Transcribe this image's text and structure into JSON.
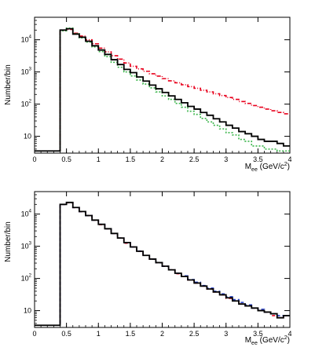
{
  "chart_data": [
    {
      "type": "histogram",
      "panel": "top",
      "ylabel": "Number/bin",
      "xlabel_main": "M",
      "xlabel_sub": "ee",
      "xlabel_unit": " (GeV/c",
      "xlabel_sup": "2",
      "xlabel_close": ")",
      "xlim": [
        0,
        4
      ],
      "ylim": [
        3,
        50000
      ],
      "yscale": "log",
      "x_ticks": [
        "0",
        "0.5",
        "1",
        "1.5",
        "2",
        "2.5",
        "3",
        "3.5",
        "4"
      ],
      "y_ticks": [
        {
          "base": "10",
          "exp": ""
        },
        {
          "base": "10",
          "exp": "2"
        },
        {
          "base": "10",
          "exp": "3"
        },
        {
          "base": "10",
          "exp": "4"
        }
      ],
      "bin_start": 0.4,
      "bin_width": 0.1,
      "underflow_value": 3.5,
      "series": [
        {
          "color": "#000000",
          "style": "solid",
          "values": [
            20000,
            22000,
            15000,
            12000,
            9000,
            6500,
            4800,
            3500,
            2400,
            1700,
            1200,
            950,
            700,
            520,
            390,
            300,
            230,
            180,
            140,
            110,
            85,
            70,
            55,
            45,
            35,
            28,
            22,
            18,
            14,
            12,
            10,
            8,
            7,
            7,
            6,
            5
          ]
        },
        {
          "color": "#e8001c",
          "style": "dashdot",
          "values": [
            20000,
            21000,
            16000,
            13000,
            10000,
            7500,
            5500,
            4200,
            3200,
            2500,
            1900,
            1500,
            1250,
            1050,
            880,
            740,
            620,
            530,
            460,
            400,
            350,
            310,
            270,
            240,
            210,
            185,
            160,
            140,
            120,
            105,
            90,
            80,
            70,
            62,
            55,
            50
          ]
        },
        {
          "color": "#3ab54a",
          "style": "dotted",
          "values": [
            19000,
            23000,
            15500,
            11500,
            8500,
            6000,
            4300,
            3000,
            2000,
            1400,
            1000,
            750,
            560,
            420,
            320,
            240,
            180,
            140,
            105,
            80,
            60,
            48,
            36,
            28,
            22,
            17,
            13,
            11,
            8,
            7,
            5,
            5,
            4,
            4,
            3.5,
            3.5
          ]
        }
      ]
    },
    {
      "type": "histogram",
      "panel": "bottom",
      "ylabel": "Number/bin",
      "xlabel_main": "M",
      "xlabel_sub": "ee",
      "xlabel_unit": " (GeV/c",
      "xlabel_sup": "2",
      "xlabel_close": ")",
      "xlim": [
        0,
        4
      ],
      "ylim": [
        3,
        50000
      ],
      "yscale": "log",
      "x_ticks": [
        "0",
        "0.5",
        "1",
        "1.5",
        "2",
        "2.5",
        "3",
        "3.5",
        "4"
      ],
      "y_ticks": [
        {
          "base": "10",
          "exp": ""
        },
        {
          "base": "10",
          "exp": "2"
        },
        {
          "base": "10",
          "exp": "3"
        },
        {
          "base": "10",
          "exp": "4"
        }
      ],
      "bin_start": 0.4,
      "bin_width": 0.1,
      "underflow_value": 3.5,
      "series": [
        {
          "color": "#000000",
          "style": "solid",
          "values": [
            20000,
            23000,
            16000,
            12000,
            9000,
            6500,
            4800,
            3500,
            2500,
            1800,
            1300,
            950,
            700,
            520,
            400,
            310,
            240,
            185,
            145,
            115,
            90,
            72,
            58,
            47,
            38,
            31,
            25,
            20,
            16,
            14,
            12,
            10,
            9,
            8,
            6,
            7
          ]
        },
        {
          "color": "#e8001c",
          "style": "dashed",
          "values": [
            20000,
            22500,
            16000,
            12000,
            9000,
            6500,
            4700,
            3500,
            2500,
            1800,
            1250,
            950,
            700,
            520,
            400,
            310,
            240,
            185,
            140,
            115,
            90,
            72,
            58,
            47,
            38,
            31,
            24,
            20,
            16,
            14,
            12,
            10,
            9,
            7,
            6,
            7
          ]
        },
        {
          "color": "#1f3cc8",
          "style": "dashed",
          "values": [
            20000,
            23000,
            16000,
            12000,
            9000,
            6500,
            4800,
            3500,
            2500,
            1800,
            1300,
            950,
            710,
            520,
            400,
            310,
            240,
            185,
            145,
            120,
            92,
            76,
            60,
            50,
            40,
            33,
            27,
            22,
            18,
            15,
            12,
            11,
            9,
            8,
            7,
            7
          ]
        }
      ]
    }
  ]
}
